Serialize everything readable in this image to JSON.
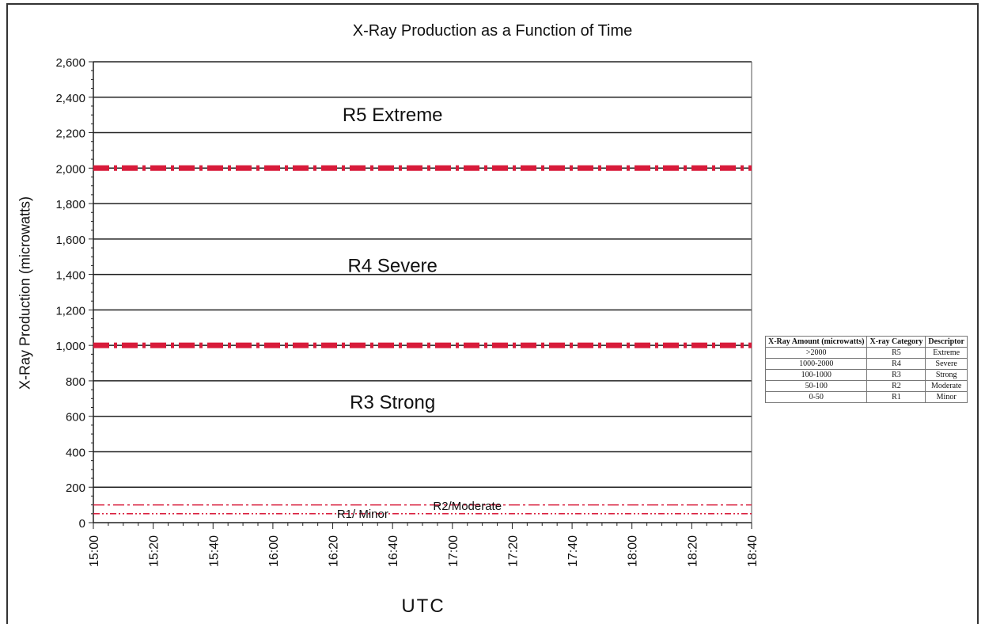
{
  "chart_data": {
    "type": "line",
    "title": "X-Ray Production as a Function of Time",
    "xlabel": "UTC",
    "ylabel": "X-Ray Production (microwatts)",
    "xlim": [
      "15:00",
      "18:40"
    ],
    "ylim": [
      0,
      2600
    ],
    "x_ticks": [
      "15:00",
      "15:20",
      "15:40",
      "16:00",
      "16:20",
      "16:40",
      "17:00",
      "17:20",
      "17:40",
      "18:00",
      "18:20",
      "18:40"
    ],
    "y_ticks": [
      "0",
      "200",
      "400",
      "600",
      "800",
      "1,000",
      "1,200",
      "1,400",
      "1,600",
      "1,800",
      "2,000",
      "2,200",
      "2,400",
      "2,600"
    ],
    "y_tick_values": [
      0,
      200,
      400,
      600,
      800,
      1000,
      1200,
      1400,
      1600,
      1800,
      2000,
      2200,
      2400,
      2600
    ],
    "grid": true,
    "series": [
      {
        "x": [
          "15:00",
          "18:40"
        ],
        "values": [
          2000,
          2000
        ],
        "color": "#d81b3a",
        "style": "thick-dash-dot"
      },
      {
        "x": [
          "15:00",
          "18:40"
        ],
        "values": [
          1000,
          1000
        ],
        "color": "#d81b3a",
        "style": "thick-dash-dot"
      },
      {
        "x": [
          "15:00",
          "18:40"
        ],
        "values": [
          100,
          100
        ],
        "color": "#d81b3a",
        "style": "thin-dash-dot"
      },
      {
        "x": [
          "15:00",
          "18:40"
        ],
        "values": [
          50,
          50
        ],
        "color": "#d81b3a",
        "style": "thin-dash-dot-dot"
      }
    ],
    "annotations": [
      {
        "text": "R5 Extreme",
        "x": "16:40",
        "y": 2300
      },
      {
        "text": "R4 Severe",
        "x": "16:40",
        "y": 1450
      },
      {
        "text": "R3 Strong",
        "x": "16:40",
        "y": 680
      },
      {
        "text": "R2/Moderate",
        "x": "17:05",
        "y": 90
      },
      {
        "text": "R1/ Minor",
        "x": "16:30",
        "y": 45
      }
    ]
  },
  "legend_table": {
    "headers": [
      "X-Ray Amount (microwatts)",
      "X-ray Category",
      "Descriptor"
    ],
    "rows": [
      [
        ">2000",
        "R5",
        "Extreme"
      ],
      [
        "1000-2000",
        "R4",
        "Severe"
      ],
      [
        "100-1000",
        "R3",
        "Strong"
      ],
      [
        "50-100",
        "R2",
        "Moderate"
      ],
      [
        "0-50",
        "R1",
        "Minor"
      ]
    ]
  }
}
